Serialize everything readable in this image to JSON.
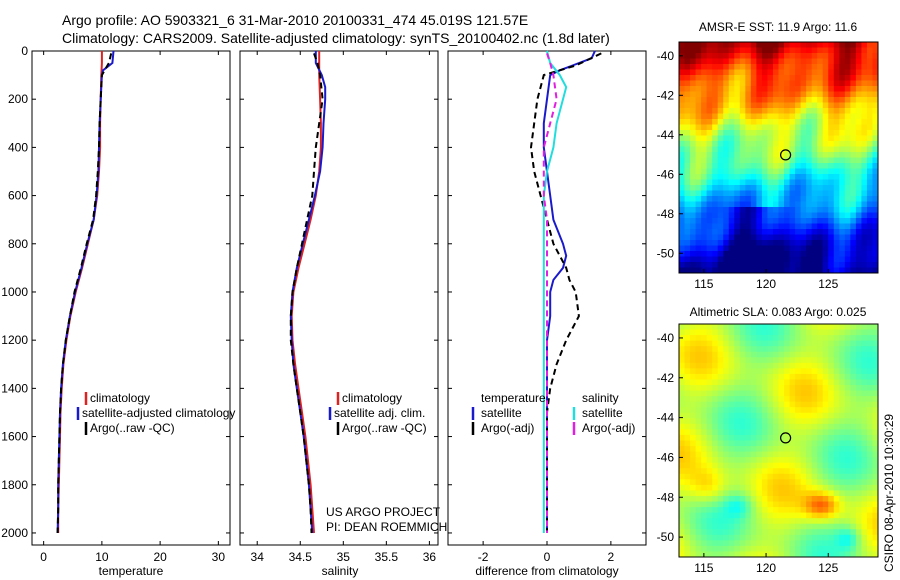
{
  "title": {
    "line1": "Argo profile: AO 5903321_6 31-Mar-2010 20100331_474 45.019S 121.57E",
    "line2": "Climatology: CARS2009. Satellite-adjusted climatology: synTS_20100402.nc (1.8d later)"
  },
  "credit": {
    "project": "US ARGO PROJECT",
    "pi": "PI: DEAN ROEMMICH",
    "stamp": "CSIRO 08-Apr-2010 10:30:29"
  },
  "colors": {
    "climatology": "#dd2222",
    "satellite": "#1a1acc",
    "argo": "#000000",
    "satellite_salinity": "#22dddd",
    "argo_salinity": "#e020e0"
  },
  "chart_data": [
    {
      "id": "temperature-profile",
      "type": "line",
      "xlabel": "temperature",
      "ylabel": "",
      "xlim": [
        -2,
        32
      ],
      "ylim": [
        2050,
        0
      ],
      "xticks": [
        0,
        10,
        20,
        30
      ],
      "yticks": [
        0,
        200,
        400,
        600,
        800,
        1000,
        1200,
        1400,
        1600,
        1800,
        2000
      ],
      "legend": {
        "placement": "lower-right",
        "entries": [
          "climatology",
          "satellite-adjusted climatology",
          "Argo(..raw -QC)"
        ]
      },
      "series": [
        {
          "name": "climatology",
          "color": "#dd2222",
          "dash": "solid",
          "points": [
            [
              10.0,
              0
            ],
            [
              10.0,
              50
            ],
            [
              9.9,
              100
            ],
            [
              9.8,
              200
            ],
            [
              9.7,
              300
            ],
            [
              9.7,
              400
            ],
            [
              9.5,
              500
            ],
            [
              9.2,
              600
            ],
            [
              8.6,
              700
            ],
            [
              7.6,
              800
            ],
            [
              6.6,
              900
            ],
            [
              5.5,
              1000
            ],
            [
              4.6,
              1100
            ],
            [
              3.9,
              1200
            ],
            [
              3.4,
              1300
            ],
            [
              3.1,
              1400
            ],
            [
              2.9,
              1500
            ],
            [
              2.8,
              1600
            ],
            [
              2.7,
              1700
            ],
            [
              2.6,
              1800
            ],
            [
              2.5,
              1900
            ],
            [
              2.5,
              2000
            ]
          ]
        },
        {
          "name": "satellite-adjusted climatology",
          "color": "#1a1acc",
          "dash": "solid",
          "points": [
            [
              12.0,
              0
            ],
            [
              11.8,
              50
            ],
            [
              10.2,
              80
            ],
            [
              10.0,
              100
            ],
            [
              9.8,
              200
            ],
            [
              9.6,
              300
            ],
            [
              9.5,
              400
            ],
            [
              9.4,
              500
            ],
            [
              9.1,
              600
            ],
            [
              8.6,
              700
            ],
            [
              7.5,
              800
            ],
            [
              6.5,
              900
            ],
            [
              5.4,
              1000
            ],
            [
              4.5,
              1100
            ],
            [
              3.8,
              1200
            ],
            [
              3.3,
              1300
            ],
            [
              3.0,
              1400
            ],
            [
              2.8,
              1500
            ],
            [
              2.7,
              1600
            ],
            [
              2.6,
              1700
            ],
            [
              2.5,
              1800
            ],
            [
              2.5,
              1900
            ],
            [
              2.4,
              2000
            ]
          ]
        },
        {
          "name": "Argo(..raw -QC)",
          "color": "#000000",
          "dash": "dashed",
          "points": [
            [
              11.6,
              10
            ],
            [
              11.2,
              50
            ],
            [
              10.0,
              100
            ],
            [
              9.8,
              200
            ],
            [
              9.6,
              300
            ],
            [
              9.5,
              400
            ],
            [
              9.3,
              500
            ],
            [
              9.0,
              600
            ],
            [
              8.5,
              700
            ],
            [
              7.4,
              800
            ],
            [
              6.4,
              900
            ],
            [
              5.3,
              1000
            ],
            [
              4.5,
              1100
            ],
            [
              3.8,
              1200
            ],
            [
              3.3,
              1300
            ],
            [
              3.0,
              1400
            ],
            [
              2.8,
              1500
            ],
            [
              2.7,
              1600
            ],
            [
              2.6,
              1700
            ],
            [
              2.5,
              1800
            ],
            [
              2.5,
              1900
            ],
            [
              2.4,
              2000
            ]
          ]
        }
      ]
    },
    {
      "id": "salinity-profile",
      "type": "line",
      "xlabel": "salinity",
      "ylabel": "",
      "xlim": [
        33.8,
        36.1
      ],
      "ylim": [
        2050,
        0
      ],
      "xticks": [
        34,
        34.5,
        35,
        35.5,
        36
      ],
      "yticks": [
        0,
        200,
        400,
        600,
        800,
        1000,
        1200,
        1400,
        1600,
        1800,
        2000
      ],
      "legend": {
        "placement": "lower-right",
        "entries": [
          "climatology",
          "satellite adj. clim.",
          "Argo(..raw -QC)"
        ]
      },
      "series": [
        {
          "name": "climatology",
          "color": "#dd2222",
          "dash": "solid",
          "points": [
            [
              34.72,
              0
            ],
            [
              34.72,
              100
            ],
            [
              34.73,
              200
            ],
            [
              34.74,
              300
            ],
            [
              34.74,
              400
            ],
            [
              34.72,
              500
            ],
            [
              34.68,
              600
            ],
            [
              34.62,
              700
            ],
            [
              34.55,
              800
            ],
            [
              34.48,
              900
            ],
            [
              34.42,
              1000
            ],
            [
              34.4,
              1100
            ],
            [
              34.41,
              1200
            ],
            [
              34.44,
              1300
            ],
            [
              34.48,
              1400
            ],
            [
              34.52,
              1500
            ],
            [
              34.56,
              1600
            ],
            [
              34.59,
              1700
            ],
            [
              34.62,
              1800
            ],
            [
              34.64,
              1900
            ],
            [
              34.66,
              2000
            ]
          ]
        },
        {
          "name": "satellite adj. clim.",
          "color": "#1a1acc",
          "dash": "solid",
          "points": [
            [
              34.68,
              0
            ],
            [
              34.68,
              50
            ],
            [
              34.75,
              100
            ],
            [
              34.79,
              150
            ],
            [
              34.79,
              200
            ],
            [
              34.77,
              300
            ],
            [
              34.76,
              400
            ],
            [
              34.73,
              500
            ],
            [
              34.67,
              600
            ],
            [
              34.6,
              700
            ],
            [
              34.53,
              800
            ],
            [
              34.46,
              900
            ],
            [
              34.41,
              1000
            ],
            [
              34.39,
              1100
            ],
            [
              34.4,
              1200
            ],
            [
              34.42,
              1300
            ],
            [
              34.46,
              1400
            ],
            [
              34.5,
              1500
            ],
            [
              34.54,
              1600
            ],
            [
              34.57,
              1700
            ],
            [
              34.6,
              1800
            ],
            [
              34.62,
              1900
            ],
            [
              34.64,
              2000
            ]
          ]
        },
        {
          "name": "Argo(..raw -QC)",
          "color": "#000000",
          "dash": "dashed",
          "points": [
            [
              34.66,
              10
            ],
            [
              34.7,
              50
            ],
            [
              34.73,
              100
            ],
            [
              34.76,
              200
            ],
            [
              34.72,
              300
            ],
            [
              34.68,
              400
            ],
            [
              34.66,
              500
            ],
            [
              34.64,
              600
            ],
            [
              34.58,
              700
            ],
            [
              34.52,
              800
            ],
            [
              34.46,
              900
            ],
            [
              34.41,
              1000
            ],
            [
              34.39,
              1100
            ],
            [
              34.39,
              1200
            ],
            [
              34.42,
              1300
            ],
            [
              34.46,
              1400
            ],
            [
              34.5,
              1500
            ],
            [
              34.54,
              1600
            ],
            [
              34.57,
              1700
            ],
            [
              34.6,
              1800
            ],
            [
              34.62,
              1900
            ],
            [
              34.63,
              2000
            ]
          ]
        }
      ]
    },
    {
      "id": "difference-profile",
      "type": "line",
      "xlabel": "difference from climatology",
      "ylabel": "",
      "xlim": [
        -3.1,
        3.1
      ],
      "ylim": [
        2050,
        0
      ],
      "xticks": [
        -2,
        0,
        2
      ],
      "yticks": [
        0,
        200,
        400,
        600,
        800,
        1000,
        1200,
        1400,
        1600,
        1800,
        2000
      ],
      "legend": {
        "placement": "lower",
        "headings": [
          "temperature",
          "salinity"
        ],
        "entries": [
          "satellite",
          "Argo(-adj)",
          "satellite",
          "Argo(-adj)"
        ]
      },
      "series": [
        {
          "name": "satellite",
          "group": "temperature",
          "color": "#1a1acc",
          "dash": "solid",
          "points": [
            [
              1.5,
              0
            ],
            [
              1.4,
              30
            ],
            [
              0.8,
              60
            ],
            [
              0.4,
              80
            ],
            [
              0.1,
              100
            ],
            [
              0.0,
              200
            ],
            [
              -0.1,
              300
            ],
            [
              -0.1,
              400
            ],
            [
              0.0,
              500
            ],
            [
              0.1,
              600
            ],
            [
              0.2,
              700
            ],
            [
              0.5,
              800
            ],
            [
              0.6,
              850
            ],
            [
              0.5,
              900
            ],
            [
              0.2,
              950
            ],
            [
              0.1,
              1000
            ],
            [
              0.1,
              1100
            ],
            [
              0.0,
              1200
            ],
            [
              0.0,
              1400
            ],
            [
              0.0,
              1600
            ],
            [
              0.0,
              1800
            ],
            [
              0.0,
              2000
            ]
          ]
        },
        {
          "name": "Argo(-adj)",
          "group": "temperature",
          "color": "#000000",
          "dash": "dashed",
          "points": [
            [
              1.7,
              10
            ],
            [
              0.9,
              60
            ],
            [
              -0.1,
              100
            ],
            [
              -0.3,
              200
            ],
            [
              -0.4,
              300
            ],
            [
              -0.5,
              400
            ],
            [
              -0.4,
              500
            ],
            [
              -0.2,
              600
            ],
            [
              0.0,
              700
            ],
            [
              0.2,
              800
            ],
            [
              0.4,
              850
            ],
            [
              0.6,
              900
            ],
            [
              0.7,
              950
            ],
            [
              0.9,
              1000
            ],
            [
              1.0,
              1100
            ],
            [
              0.6,
              1200
            ],
            [
              0.3,
              1300
            ],
            [
              0.1,
              1400
            ],
            [
              0.0,
              1500
            ],
            [
              0.0,
              1700
            ],
            [
              0.0,
              2000
            ]
          ]
        },
        {
          "name": "satellite",
          "group": "salinity",
          "color": "#22dddd",
          "dash": "solid",
          "points": [
            [
              0.0,
              0
            ],
            [
              0.1,
              50
            ],
            [
              0.4,
              100
            ],
            [
              0.6,
              150
            ],
            [
              0.5,
              200
            ],
            [
              0.3,
              300
            ],
            [
              0.2,
              400
            ],
            [
              0.0,
              500
            ],
            [
              -0.1,
              600
            ],
            [
              -0.1,
              700
            ],
            [
              -0.1,
              800
            ],
            [
              -0.1,
              900
            ],
            [
              -0.1,
              1000
            ],
            [
              -0.1,
              1100
            ],
            [
              -0.1,
              1200
            ],
            [
              -0.1,
              1400
            ],
            [
              -0.1,
              1600
            ],
            [
              -0.1,
              1800
            ],
            [
              -0.1,
              2000
            ]
          ]
        },
        {
          "name": "Argo(-adj)",
          "group": "salinity",
          "color": "#e020e0",
          "dash": "dashed",
          "points": [
            [
              0.0,
              10
            ],
            [
              0.1,
              50
            ],
            [
              0.2,
              100
            ],
            [
              0.3,
              200
            ],
            [
              0.1,
              300
            ],
            [
              -0.1,
              400
            ],
            [
              -0.1,
              500
            ],
            [
              -0.1,
              600
            ],
            [
              0.0,
              700
            ],
            [
              0.0,
              800
            ],
            [
              0.0,
              1000
            ],
            [
              0.0,
              1200
            ],
            [
              0.0,
              1400
            ],
            [
              0.0,
              1600
            ],
            [
              0.0,
              2000
            ]
          ]
        }
      ]
    },
    {
      "id": "sst-map",
      "type": "heatmap",
      "title": "AMSR-E SST: 11.9 Argo: 11.6",
      "xlim": [
        113,
        129
      ],
      "ylim": [
        -51,
        -39.3
      ],
      "xticks": [
        115,
        120,
        125
      ],
      "yticks": [
        -40,
        -42,
        -44,
        -46,
        -48,
        -50
      ],
      "marker": {
        "lon": 121.57,
        "lat": -45.019
      },
      "palette": "jet"
    },
    {
      "id": "sla-map",
      "type": "heatmap",
      "title": "Altimetric SLA: 0.083 Argo: 0.025",
      "xlim": [
        113,
        129
      ],
      "ylim": [
        -51,
        -39.3
      ],
      "xticks": [
        115,
        120,
        125
      ],
      "yticks": [
        -40,
        -42,
        -44,
        -46,
        -48,
        -50
      ],
      "marker": {
        "lon": 121.57,
        "lat": -45.019
      },
      "palette": "jet"
    }
  ]
}
